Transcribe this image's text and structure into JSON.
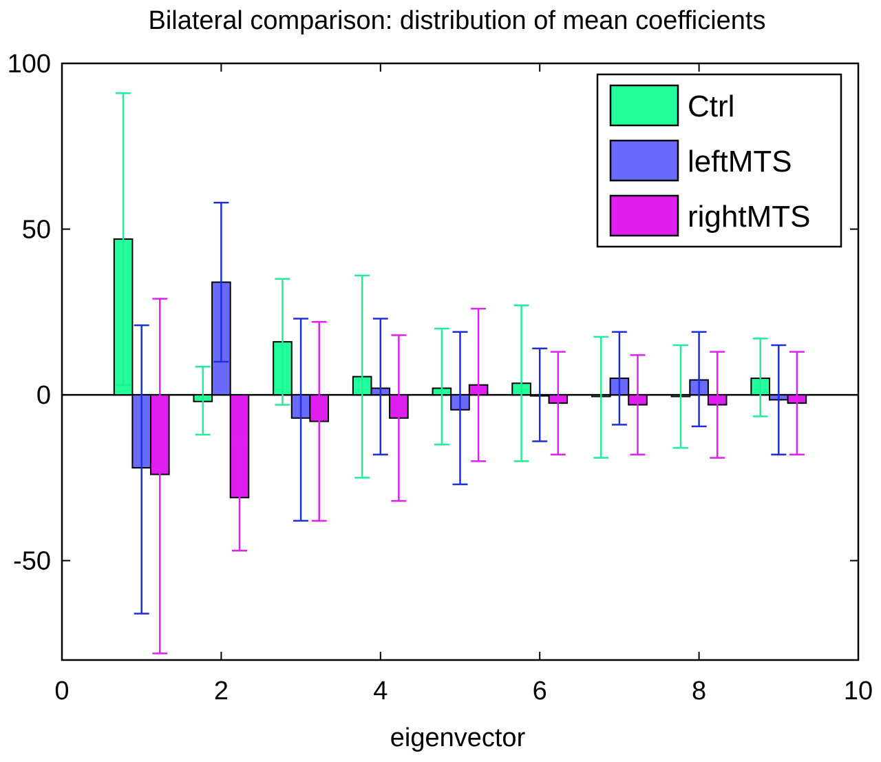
{
  "chart_data": {
    "type": "bar",
    "title": "Bilateral comparison: distribution of mean coefficients",
    "xlabel": "eigenvector",
    "ylabel": "",
    "xlim": [
      0,
      10
    ],
    "ylim": [
      -80,
      100
    ],
    "x_ticks": [
      0,
      2,
      4,
      6,
      8,
      10
    ],
    "y_ticks": [
      -50,
      0,
      50,
      100
    ],
    "grid": false,
    "legend_position": "top-right",
    "categories": [
      1,
      2,
      3,
      4,
      5,
      6,
      7,
      8,
      9
    ],
    "series": [
      {
        "name": "Ctrl",
        "color": "#22ff9a",
        "error_color": "#22ee99",
        "values": [
          47,
          -2,
          16,
          5.5,
          2,
          3.5,
          -0.5,
          -0.5,
          5
        ],
        "err_low": [
          3,
          -12,
          -3,
          -25,
          -15,
          -20,
          -19,
          -16,
          -6.5
        ],
        "err_high": [
          91,
          8.5,
          35,
          36,
          20,
          27,
          17.5,
          15,
          17
        ]
      },
      {
        "name": "leftMTS",
        "color": "#6a6aff",
        "error_color": "#1f2fd8",
        "values": [
          -22,
          34,
          -7,
          2,
          -4.5,
          0,
          5,
          4.5,
          -1.5
        ],
        "err_low": [
          -66,
          10,
          -38,
          -18,
          -27,
          -14,
          -9,
          -9.5,
          -18
        ],
        "err_high": [
          21,
          58,
          23,
          23,
          19,
          14,
          19,
          19,
          15
        ]
      },
      {
        "name": "rightMTS",
        "color": "#e11ef0",
        "error_color": "#dd22ee",
        "values": [
          -24,
          -31,
          -8,
          -7,
          3,
          -2.5,
          -3,
          -3,
          -2.5
        ],
        "err_low": [
          -78,
          -47,
          -38,
          -32,
          -20,
          -18,
          -18,
          -19,
          -18
        ],
        "err_high": [
          29,
          -14,
          22,
          18,
          26,
          13,
          12,
          13,
          13
        ]
      }
    ]
  }
}
